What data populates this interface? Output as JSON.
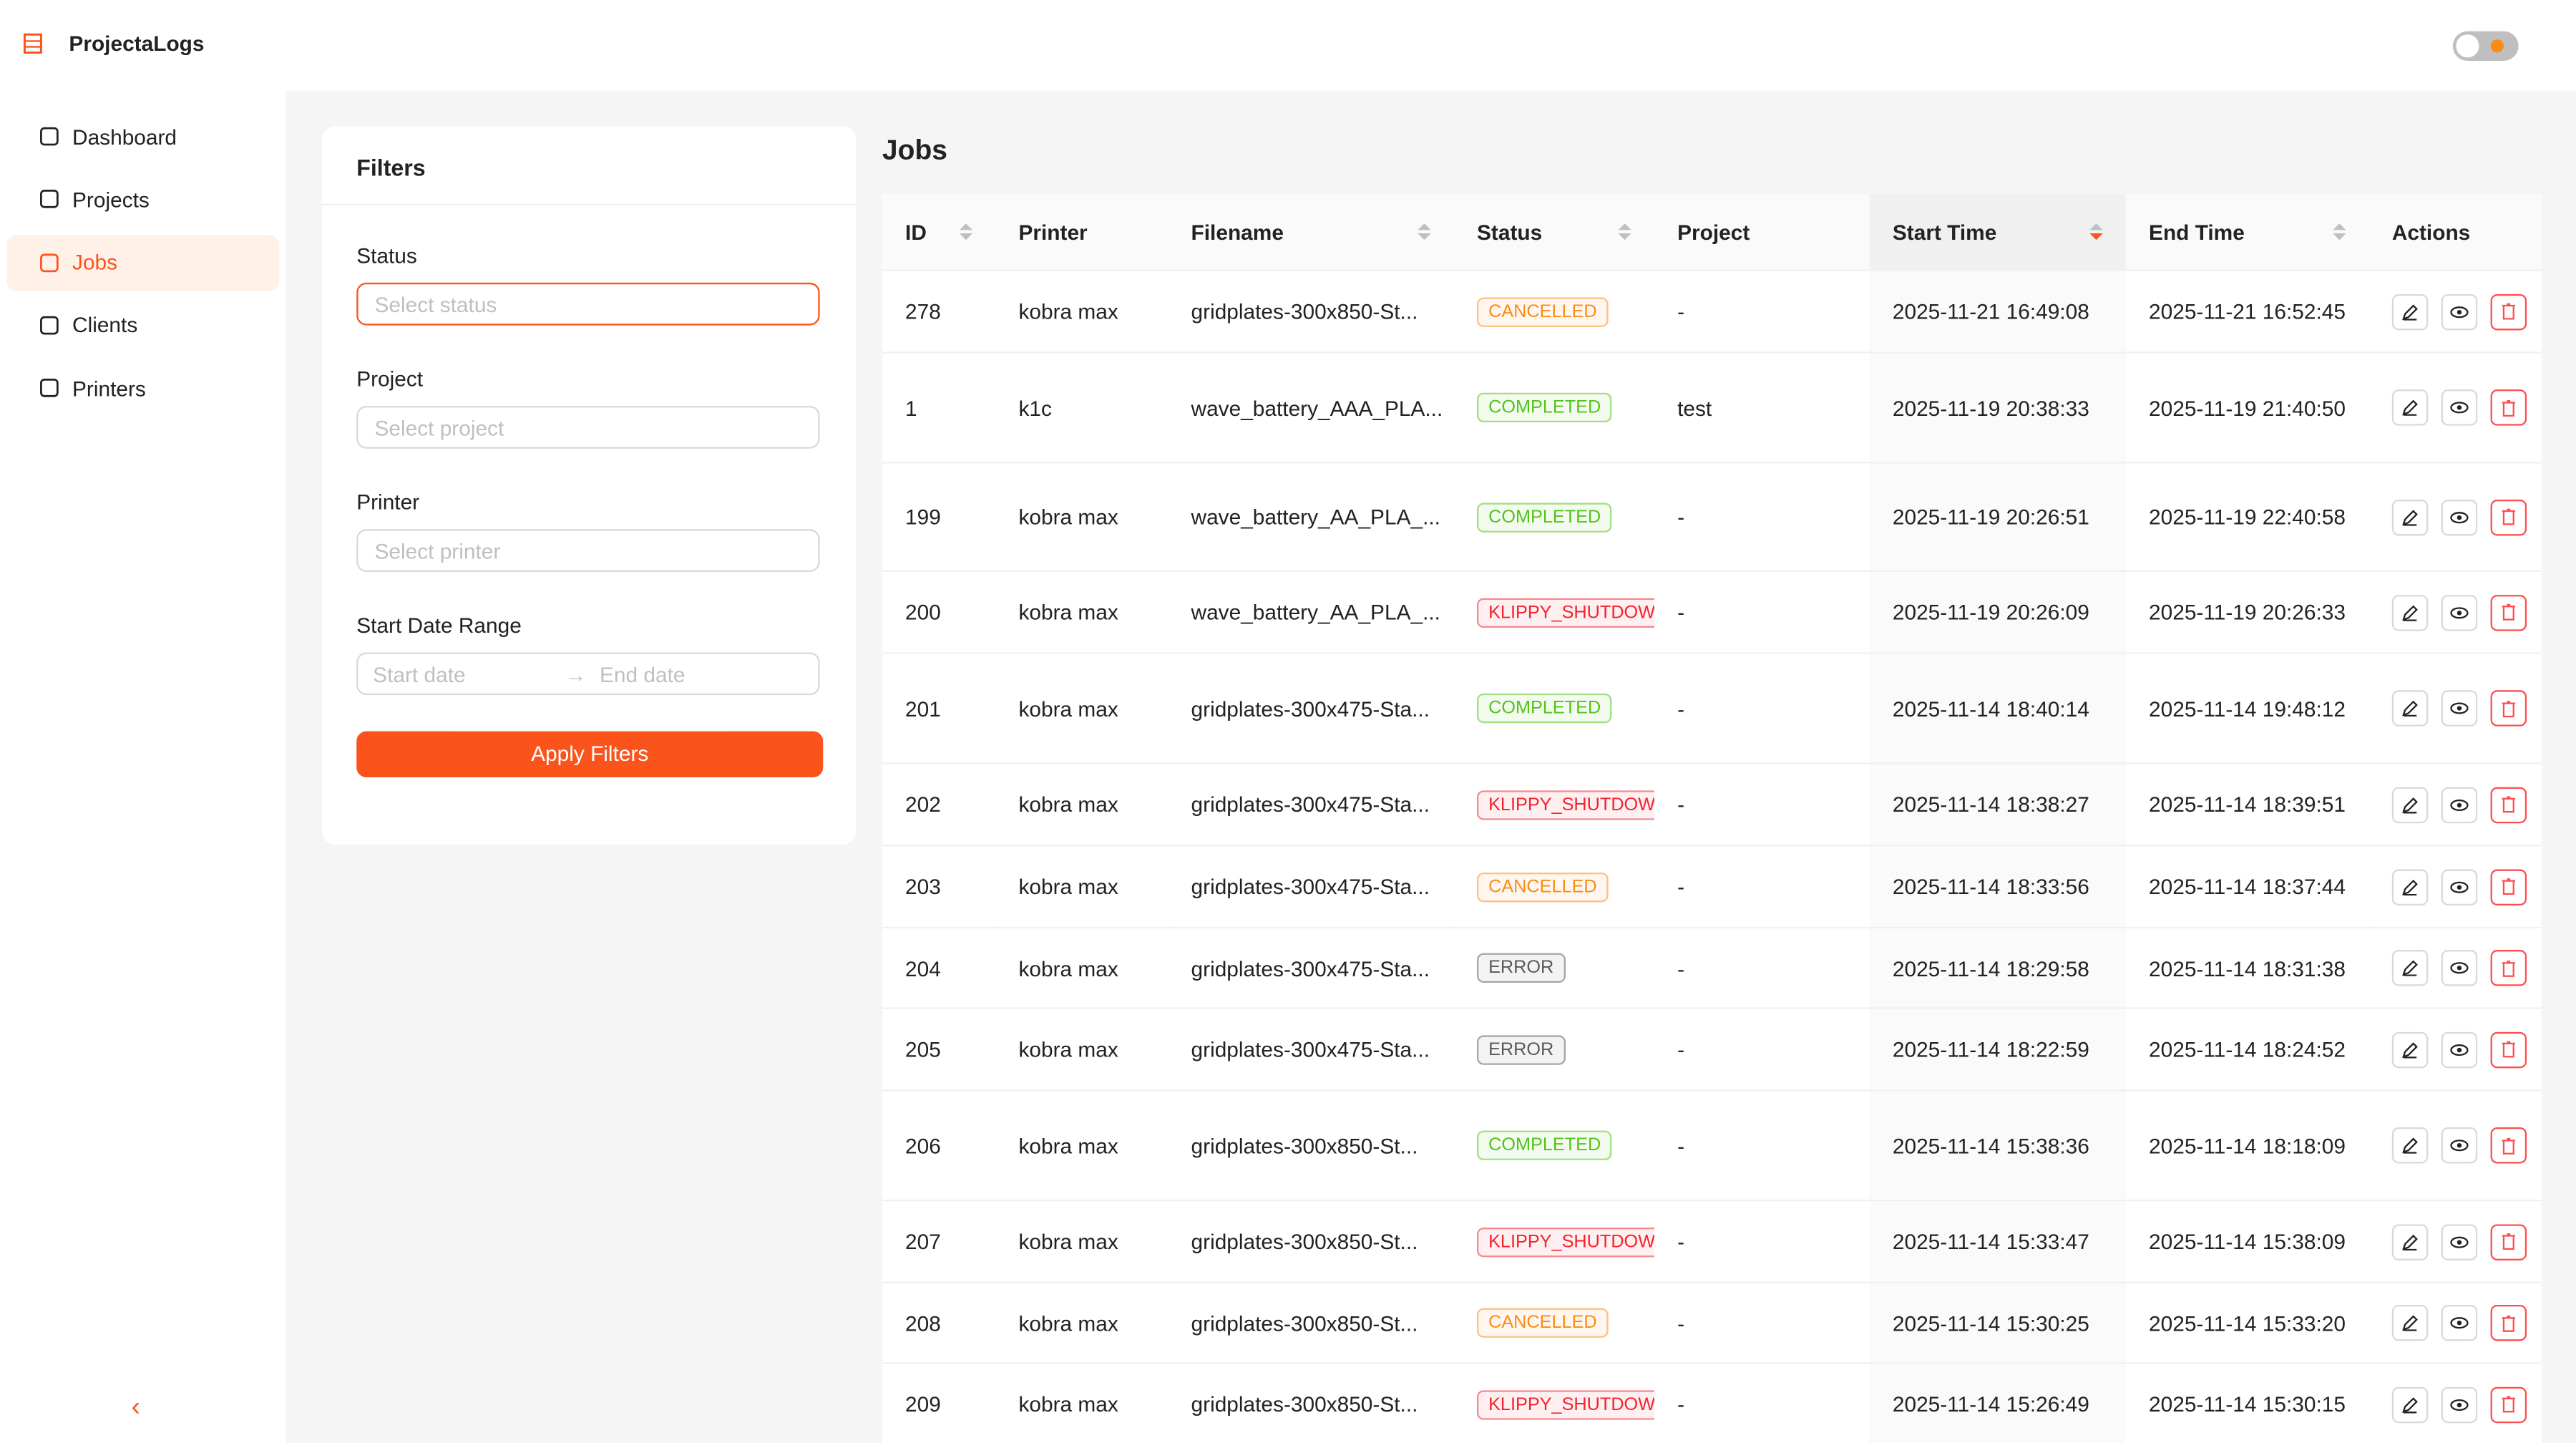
{
  "header": {
    "app_name": "ProjectaLogs"
  },
  "nav": [
    "Dashboard",
    "Projects",
    "Jobs",
    "Clients",
    "Printers"
  ],
  "filters": {
    "title": "Filters",
    "status_label": "Status",
    "status_placeholder": "Select status",
    "project_label": "Project",
    "project_placeholder": "Select project",
    "printer_label": "Printer",
    "printer_placeholder": "Select printer",
    "date_label": "Start Date Range",
    "start_placeholder": "Start date",
    "end_placeholder": "End date",
    "apply": "Apply Filters"
  },
  "jobs": {
    "title": "Jobs",
    "columns": [
      "ID",
      "Printer",
      "Filename",
      "Status",
      "Project",
      "Start Time",
      "End Time",
      "Actions"
    ],
    "rows": [
      {
        "id": "278",
        "printer": "kobra max",
        "filename": "gridplates-300x850-St...",
        "status": "CANCELLED",
        "status_color": "#fa8c16",
        "project": "-",
        "start": "2025-11-21 16:49:08",
        "end": "2025-11-21 16:52:45"
      },
      {
        "id": "1",
        "printer": "k1c",
        "filename": "wave_battery_AAA_PLA...",
        "status": "COMPLETED",
        "status_color": "#52c41a",
        "project": "test",
        "start": "2025-11-19 20:38:33",
        "end": "2025-11-19 21:40:50"
      },
      {
        "id": "199",
        "printer": "kobra max",
        "filename": "wave_battery_AA_PLA_...",
        "status": "COMPLETED",
        "status_color": "#52c41a",
        "project": "-",
        "start": "2025-11-19 20:26:51",
        "end": "2025-11-19 22:40:58"
      },
      {
        "id": "200",
        "printer": "kobra max",
        "filename": "wave_battery_AA_PLA_...",
        "status": "KLIPPY_SHUTDOWN",
        "status_color": "#f5222d",
        "project": "-",
        "start": "2025-11-19 20:26:09",
        "end": "2025-11-19 20:26:33"
      },
      {
        "id": "201",
        "printer": "kobra max",
        "filename": "gridplates-300x475-Sta...",
        "status": "COMPLETED",
        "status_color": "#52c41a",
        "project": "-",
        "start": "2025-11-14 18:40:14",
        "end": "2025-11-14 19:48:12"
      },
      {
        "id": "202",
        "printer": "kobra max",
        "filename": "gridplates-300x475-Sta...",
        "status": "KLIPPY_SHUTDOWN",
        "status_color": "#f5222d",
        "project": "-",
        "start": "2025-11-14 18:38:27",
        "end": "2025-11-14 18:39:51"
      },
      {
        "id": "203",
        "printer": "kobra max",
        "filename": "gridplates-300x475-Sta...",
        "status": "CANCELLED",
        "status_color": "#fa8c16",
        "project": "-",
        "start": "2025-11-14 18:33:56",
        "end": "2025-11-14 18:37:44"
      },
      {
        "id": "204",
        "printer": "kobra max",
        "filename": "gridplates-300x475-Sta...",
        "status": "ERROR",
        "status_color": "#595959",
        "project": "-",
        "start": "2025-11-14 18:29:58",
        "end": "2025-11-14 18:31:38"
      },
      {
        "id": "205",
        "printer": "kobra max",
        "filename": "gridplates-300x475-Sta...",
        "status": "ERROR",
        "status_color": "#595959",
        "project": "-",
        "start": "2025-11-14 18:22:59",
        "end": "2025-11-14 18:24:52"
      },
      {
        "id": "206",
        "printer": "kobra max",
        "filename": "gridplates-300x850-St...",
        "status": "COMPLETED",
        "status_color": "#52c41a",
        "project": "-",
        "start": "2025-11-14 15:38:36",
        "end": "2025-11-14 18:18:09"
      },
      {
        "id": "207",
        "printer": "kobra max",
        "filename": "gridplates-300x850-St...",
        "status": "KLIPPY_SHUTDOWN",
        "status_color": "#f5222d",
        "project": "-",
        "start": "2025-11-14 15:33:47",
        "end": "2025-11-14 15:38:09"
      },
      {
        "id": "208",
        "printer": "kobra max",
        "filename": "gridplates-300x850-St...",
        "status": "CANCELLED",
        "status_color": "#fa8c16",
        "project": "-",
        "start": "2025-11-14 15:30:25",
        "end": "2025-11-14 15:33:20"
      },
      {
        "id": "209",
        "printer": "kobra max",
        "filename": "gridplates-300x850-St...",
        "status": "KLIPPY_SHUTDOWN",
        "status_color": "#f5222d",
        "project": "-",
        "start": "2025-11-14 15:26:49",
        "end": "2025-11-14 15:30:15"
      }
    ]
  }
}
